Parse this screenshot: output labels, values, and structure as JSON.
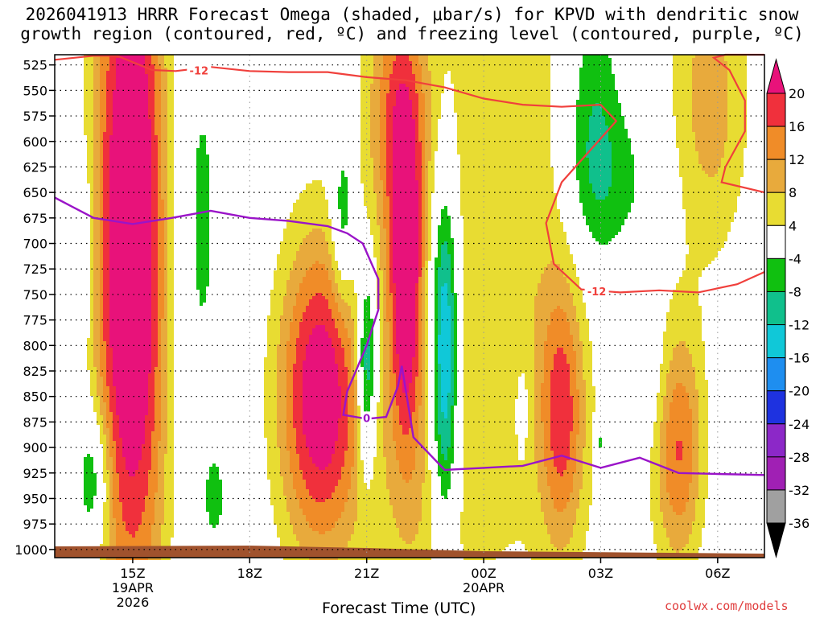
{
  "chart_data": {
    "type": "heatmap",
    "title_line1": "2026041913 HRRR Forecast Omega (shaded, μbar/s) for KPVD with dendritic snow",
    "title_line2": "growth region (contoured, red, ºC) and freezing level (contoured, purple, ºC)",
    "xlabel": "Forecast Time (UTC)",
    "credit": "coolwx.com/models",
    "x_ticks": [
      {
        "hour": 15,
        "label": "15Z",
        "sub1": "19APR",
        "sub2": "2026"
      },
      {
        "hour": 18,
        "label": "18Z",
        "sub1": "",
        "sub2": ""
      },
      {
        "hour": 21,
        "label": "21Z",
        "sub1": "",
        "sub2": ""
      },
      {
        "hour": 24,
        "label": "00Z",
        "sub1": "20APR",
        "sub2": ""
      },
      {
        "hour": 27,
        "label": "03Z",
        "sub1": "",
        "sub2": ""
      },
      {
        "hour": 30,
        "label": "06Z",
        "sub1": "",
        "sub2": ""
      }
    ],
    "xlim": [
      13,
      31.2
    ],
    "y_levels": [
      525,
      550,
      575,
      600,
      625,
      650,
      675,
      700,
      725,
      750,
      775,
      800,
      825,
      850,
      875,
      900,
      925,
      950,
      975,
      1000
    ],
    "ylim_hpa": [
      515,
      1008
    ],
    "colorbar": {
      "labels": [
        "20",
        "16",
        "12",
        "8",
        "4",
        "-4",
        "-8",
        "-12",
        "-16",
        "-20",
        "-24",
        "-28",
        "-32",
        "-36"
      ],
      "bins": [
        {
          "lo": 20,
          "hi": 99,
          "color": "#e8127a"
        },
        {
          "lo": 16,
          "hi": 20,
          "color": "#f0303c"
        },
        {
          "lo": 12,
          "hi": 16,
          "color": "#f08c28"
        },
        {
          "lo": 8,
          "hi": 12,
          "color": "#e8aa3c"
        },
        {
          "lo": 4,
          "hi": 8,
          "color": "#e8dc32"
        },
        {
          "lo": -4,
          "hi": 4,
          "color": "#ffffff"
        },
        {
          "lo": -8,
          "hi": -4,
          "color": "#10c010"
        },
        {
          "lo": -12,
          "hi": -8,
          "color": "#10c08c"
        },
        {
          "lo": -16,
          "hi": -12,
          "color": "#10c8d8"
        },
        {
          "lo": -20,
          "hi": -16,
          "color": "#1e8ef0"
        },
        {
          "lo": -24,
          "hi": -20,
          "color": "#1e32e0"
        },
        {
          "lo": -28,
          "hi": -24,
          "color": "#8c28c8"
        },
        {
          "lo": -32,
          "hi": -28,
          "color": "#a020b4"
        },
        {
          "lo": -36,
          "hi": -32,
          "color": "#a0a0a0"
        },
        {
          "lo": -99,
          "hi": -36,
          "color": "#000000"
        }
      ]
    },
    "omega_features": [
      {
        "t": 15.0,
        "p": 700,
        "st": 0.7,
        "sp": 260,
        "amp": 30
      },
      {
        "t": 14.0,
        "p": 930,
        "st": 0.3,
        "sp": 50,
        "amp": -12
      },
      {
        "t": 13.8,
        "p": 710,
        "st": 0.2,
        "sp": 80,
        "amp": -6
      },
      {
        "t": 16.4,
        "p": 680,
        "st": 0.7,
        "sp": 200,
        "amp": -6.5
      },
      {
        "t": 17.1,
        "p": 950,
        "st": 0.15,
        "sp": 25,
        "amp": -6
      },
      {
        "t": 19.8,
        "p": 850,
        "st": 0.75,
        "sp": 110,
        "amp": 24
      },
      {
        "t": 20.4,
        "p": 680,
        "st": 0.22,
        "sp": 60,
        "amp": -11
      },
      {
        "t": 21.0,
        "p": 820,
        "st": 0.18,
        "sp": 70,
        "amp": -18
      },
      {
        "t": 22.0,
        "p": 740,
        "st": 0.3,
        "sp": 110,
        "amp": 22
      },
      {
        "t": 21.8,
        "p": 570,
        "st": 0.55,
        "sp": 90,
        "amp": 14
      },
      {
        "t": 22.2,
        "p": 950,
        "st": 1.0,
        "sp": 110,
        "amp": 5
      },
      {
        "t": 24.5,
        "p": 700,
        "st": 2.0,
        "sp": 260,
        "amp": 7.2
      },
      {
        "t": 23.0,
        "p": 810,
        "st": 0.25,
        "sp": 120,
        "amp": -22
      },
      {
        "t": 26.8,
        "p": 570,
        "st": 0.5,
        "sp": 110,
        "amp": -9
      },
      {
        "t": 29.8,
        "p": 560,
        "st": 0.7,
        "sp": 110,
        "amp": 10
      },
      {
        "t": 26.0,
        "p": 870,
        "st": 0.4,
        "sp": 90,
        "amp": 15
      },
      {
        "t": 29.0,
        "p": 900,
        "st": 0.45,
        "sp": 85,
        "amp": 16
      },
      {
        "t": 27.4,
        "p": 640,
        "st": 0.9,
        "sp": 60,
        "amp": -6
      },
      {
        "t": 25.0,
        "p": 860,
        "st": 0.15,
        "sp": 40,
        "amp": -4
      },
      {
        "t": 28.0,
        "p": 830,
        "st": 0.5,
        "sp": 50,
        "amp": -6
      },
      {
        "t": 27.0,
        "p": 895,
        "st": 0.08,
        "sp": 20,
        "amp": -7
      }
    ],
    "dgz_contour": {
      "label": "-12",
      "upper_t": [
        13.0,
        14.0,
        14.6,
        15.5,
        16.1,
        17.0,
        18.0,
        19.0,
        20.0,
        21.0,
        22.0,
        23.0,
        24.0,
        25.0,
        26.0,
        27.0,
        27.4
      ],
      "upper_p": [
        520,
        516,
        516,
        530,
        531,
        527,
        531,
        532,
        532,
        537,
        540,
        547,
        558,
        564,
        566,
        564,
        580
      ],
      "right_t": [
        27.4,
        26.0,
        25.6,
        25.8,
        26.5,
        27.5,
        28.5,
        29.5,
        30.5,
        31.2
      ],
      "right_p": [
        580,
        640,
        680,
        720,
        745,
        748,
        746,
        748,
        740,
        728
      ],
      "upper_right_t": [
        31.2,
        30.1,
        30.2,
        30.7,
        30.7,
        30.3,
        29.9,
        30.2,
        31.2
      ],
      "upper_right_p": [
        650,
        640,
        625,
        590,
        560,
        530,
        518,
        515,
        515
      ]
    },
    "freezing_contour": {
      "label": "0",
      "t": [
        13.0,
        13.5,
        14.0,
        15.0,
        16.0,
        17.0,
        18.0,
        19.0,
        20.0,
        20.5,
        20.9,
        21.3,
        21.3,
        21.0,
        20.5,
        20.4,
        21.0,
        21.5,
        21.8,
        21.9,
        22.2,
        23.0,
        24.0,
        25.0,
        26.0,
        27.0,
        28.0,
        29.0,
        30.0,
        31.2
      ],
      "p": [
        655,
        665,
        675,
        681,
        675,
        668,
        675,
        678,
        683,
        690,
        700,
        735,
        765,
        800,
        845,
        868,
        872,
        870,
        840,
        820,
        890,
        922,
        920,
        918,
        908,
        920,
        910,
        925,
        926,
        927
      ]
    }
  }
}
